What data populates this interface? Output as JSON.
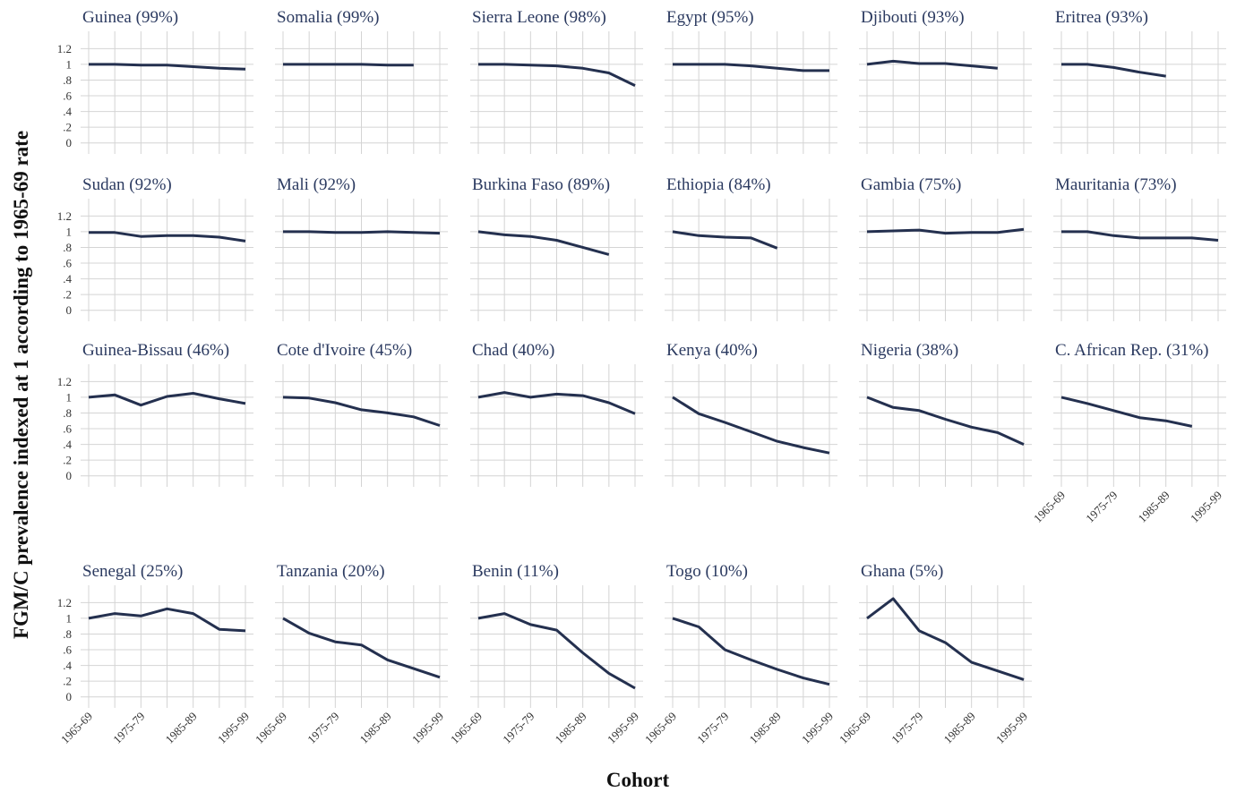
{
  "axis_titles": {
    "y": "FGM/C prevalence indexed at 1 according to 1965-69 rate",
    "x": "Cohort"
  },
  "chart_data": [
    {
      "type": "line",
      "title": "Guinea (99%)",
      "categories": [
        "1965-69",
        null,
        "1975-79",
        null,
        "1985-89",
        null,
        "1995-99"
      ],
      "values": [
        1,
        1,
        0.99,
        0.99,
        0.97,
        0.95,
        0.94
      ],
      "color": "#24304f",
      "ylim": [
        -0.14,
        1.42
      ],
      "yticks": [
        0,
        {
          "value": 0.2,
          "label": ".2"
        },
        {
          "value": 0.4,
          "label": ".4"
        },
        {
          "value": 0.6,
          "label": ".6"
        },
        {
          "value": 0.8,
          "label": ".8"
        },
        1,
        1.2
      ],
      "ytick_labels": true,
      "xtick_labels": false,
      "grid": true
    },
    {
      "type": "line",
      "title": "Somalia (99%)",
      "categories": [
        "1965-69",
        null,
        "1975-79",
        null,
        "1985-89",
        null,
        "1995-99"
      ],
      "values": [
        1,
        1,
        1,
        1,
        0.99,
        0.99,
        null
      ],
      "color": "#24304f",
      "ylim": [
        -0.14,
        1.42
      ],
      "yticks": [
        0,
        {
          "value": 0.2,
          "label": ".2"
        },
        {
          "value": 0.4,
          "label": ".4"
        },
        {
          "value": 0.6,
          "label": ".6"
        },
        {
          "value": 0.8,
          "label": ".8"
        },
        1,
        1.2
      ],
      "ytick_labels": false,
      "xtick_labels": false,
      "grid": true
    },
    {
      "type": "line",
      "title": "Sierra Leone (98%)",
      "categories": [
        "1965-69",
        null,
        "1975-79",
        null,
        "1985-89",
        null,
        "1995-99"
      ],
      "values": [
        1,
        1,
        0.99,
        0.98,
        0.95,
        0.89,
        0.73
      ],
      "color": "#24304f",
      "ylim": [
        -0.14,
        1.42
      ],
      "yticks": [
        0,
        {
          "value": 0.2,
          "label": ".2"
        },
        {
          "value": 0.4,
          "label": ".4"
        },
        {
          "value": 0.6,
          "label": ".6"
        },
        {
          "value": 0.8,
          "label": ".8"
        },
        1,
        1.2
      ],
      "ytick_labels": false,
      "xtick_labels": false,
      "grid": true
    },
    {
      "type": "line",
      "title": "Egypt (95%)",
      "categories": [
        "1965-69",
        null,
        "1975-79",
        null,
        "1985-89",
        null,
        "1995-99"
      ],
      "values": [
        1,
        1,
        1,
        0.98,
        0.95,
        0.92,
        0.92
      ],
      "color": "#24304f",
      "ylim": [
        -0.14,
        1.42
      ],
      "yticks": [
        0,
        {
          "value": 0.2,
          "label": ".2"
        },
        {
          "value": 0.4,
          "label": ".4"
        },
        {
          "value": 0.6,
          "label": ".6"
        },
        {
          "value": 0.8,
          "label": ".8"
        },
        1,
        1.2
      ],
      "ytick_labels": false,
      "xtick_labels": false,
      "grid": true
    },
    {
      "type": "line",
      "title": "Djibouti (93%)",
      "categories": [
        "1965-69",
        null,
        "1975-79",
        null,
        "1985-89",
        null,
        "1995-99"
      ],
      "values": [
        1,
        1.04,
        1.01,
        1.01,
        0.98,
        0.95,
        null
      ],
      "color": "#24304f",
      "ylim": [
        -0.14,
        1.42
      ],
      "yticks": [
        0,
        {
          "value": 0.2,
          "label": ".2"
        },
        {
          "value": 0.4,
          "label": ".4"
        },
        {
          "value": 0.6,
          "label": ".6"
        },
        {
          "value": 0.8,
          "label": ".8"
        },
        1,
        1.2
      ],
      "ytick_labels": false,
      "xtick_labels": false,
      "grid": true
    },
    {
      "type": "line",
      "title": "Eritrea (93%)",
      "categories": [
        "1965-69",
        null,
        "1975-79",
        null,
        "1985-89",
        null,
        "1995-99"
      ],
      "values": [
        1,
        1,
        0.96,
        0.9,
        0.85,
        null,
        null
      ],
      "color": "#24304f",
      "ylim": [
        -0.14,
        1.42
      ],
      "yticks": [
        0,
        {
          "value": 0.2,
          "label": ".2"
        },
        {
          "value": 0.4,
          "label": ".4"
        },
        {
          "value": 0.6,
          "label": ".6"
        },
        {
          "value": 0.8,
          "label": ".8"
        },
        1,
        1.2
      ],
      "ytick_labels": false,
      "xtick_labels": false,
      "grid": true
    },
    {
      "type": "line",
      "title": "Sudan (92%)",
      "categories": [
        "1965-69",
        null,
        "1975-79",
        null,
        "1985-89",
        null,
        "1995-99"
      ],
      "values": [
        0.99,
        0.99,
        0.94,
        0.95,
        0.95,
        0.93,
        0.88
      ],
      "color": "#24304f",
      "ylim": [
        -0.14,
        1.42
      ],
      "yticks": [
        0,
        {
          "value": 0.2,
          "label": ".2"
        },
        {
          "value": 0.4,
          "label": ".4"
        },
        {
          "value": 0.6,
          "label": ".6"
        },
        {
          "value": 0.8,
          "label": ".8"
        },
        1,
        1.2
      ],
      "ytick_labels": true,
      "xtick_labels": false,
      "grid": true
    },
    {
      "type": "line",
      "title": "Mali (92%)",
      "categories": [
        "1965-69",
        null,
        "1975-79",
        null,
        "1985-89",
        null,
        "1995-99"
      ],
      "values": [
        1,
        1,
        0.99,
        0.99,
        1,
        0.99,
        0.98
      ],
      "color": "#24304f",
      "ylim": [
        -0.14,
        1.42
      ],
      "yticks": [
        0,
        {
          "value": 0.2,
          "label": ".2"
        },
        {
          "value": 0.4,
          "label": ".4"
        },
        {
          "value": 0.6,
          "label": ".6"
        },
        {
          "value": 0.8,
          "label": ".8"
        },
        1,
        1.2
      ],
      "ytick_labels": false,
      "xtick_labels": false,
      "grid": true
    },
    {
      "type": "line",
      "title": "Burkina Faso (89%)",
      "categories": [
        "1965-69",
        null,
        "1975-79",
        null,
        "1985-89",
        null,
        "1995-99"
      ],
      "values": [
        1,
        0.96,
        0.94,
        0.89,
        0.8,
        0.71,
        null
      ],
      "color": "#24304f",
      "ylim": [
        -0.14,
        1.42
      ],
      "yticks": [
        0,
        {
          "value": 0.2,
          "label": ".2"
        },
        {
          "value": 0.4,
          "label": ".4"
        },
        {
          "value": 0.6,
          "label": ".6"
        },
        {
          "value": 0.8,
          "label": ".8"
        },
        1,
        1.2
      ],
      "ytick_labels": false,
      "xtick_labels": false,
      "grid": true
    },
    {
      "type": "line",
      "title": "Ethiopia (84%)",
      "categories": [
        "1965-69",
        null,
        "1975-79",
        null,
        "1985-89",
        null,
        "1995-99"
      ],
      "values": [
        1,
        0.95,
        0.93,
        0.92,
        0.79,
        null,
        null
      ],
      "color": "#24304f",
      "ylim": [
        -0.14,
        1.42
      ],
      "yticks": [
        0,
        {
          "value": 0.2,
          "label": ".2"
        },
        {
          "value": 0.4,
          "label": ".4"
        },
        {
          "value": 0.6,
          "label": ".6"
        },
        {
          "value": 0.8,
          "label": ".8"
        },
        1,
        1.2
      ],
      "ytick_labels": false,
      "xtick_labels": false,
      "grid": true
    },
    {
      "type": "line",
      "title": "Gambia (75%)",
      "categories": [
        "1965-69",
        null,
        "1975-79",
        null,
        "1985-89",
        null,
        "1995-99"
      ],
      "values": [
        1,
        1.01,
        1.02,
        0.98,
        0.99,
        0.99,
        1.03
      ],
      "color": "#24304f",
      "ylim": [
        -0.14,
        1.42
      ],
      "yticks": [
        0,
        {
          "value": 0.2,
          "label": ".2"
        },
        {
          "value": 0.4,
          "label": ".4"
        },
        {
          "value": 0.6,
          "label": ".6"
        },
        {
          "value": 0.8,
          "label": ".8"
        },
        1,
        1.2
      ],
      "ytick_labels": false,
      "xtick_labels": false,
      "grid": true
    },
    {
      "type": "line",
      "title": "Mauritania (73%)",
      "categories": [
        "1965-69",
        null,
        "1975-79",
        null,
        "1985-89",
        null,
        "1995-99"
      ],
      "values": [
        1,
        1,
        0.95,
        0.92,
        0.92,
        0.92,
        0.89
      ],
      "color": "#24304f",
      "ylim": [
        -0.14,
        1.42
      ],
      "yticks": [
        0,
        {
          "value": 0.2,
          "label": ".2"
        },
        {
          "value": 0.4,
          "label": ".4"
        },
        {
          "value": 0.6,
          "label": ".6"
        },
        {
          "value": 0.8,
          "label": ".8"
        },
        1,
        1.2
      ],
      "ytick_labels": false,
      "xtick_labels": false,
      "grid": true
    },
    {
      "type": "line",
      "title": "Guinea-Bissau (46%)",
      "categories": [
        "1965-69",
        null,
        "1975-79",
        null,
        "1985-89",
        null,
        "1995-99"
      ],
      "values": [
        1,
        1.03,
        0.9,
        1.01,
        1.05,
        0.98,
        0.92
      ],
      "color": "#24304f",
      "ylim": [
        -0.14,
        1.42
      ],
      "yticks": [
        0,
        {
          "value": 0.2,
          "label": ".2"
        },
        {
          "value": 0.4,
          "label": ".4"
        },
        {
          "value": 0.6,
          "label": ".6"
        },
        {
          "value": 0.8,
          "label": ".8"
        },
        1,
        1.2
      ],
      "ytick_labels": true,
      "xtick_labels": false,
      "grid": true
    },
    {
      "type": "line",
      "title": "Cote d'Ivoire (45%)",
      "categories": [
        "1965-69",
        null,
        "1975-79",
        null,
        "1985-89",
        null,
        "1995-99"
      ],
      "values": [
        1,
        0.99,
        0.93,
        0.84,
        0.8,
        0.75,
        0.64
      ],
      "color": "#24304f",
      "ylim": [
        -0.14,
        1.42
      ],
      "yticks": [
        0,
        {
          "value": 0.2,
          "label": ".2"
        },
        {
          "value": 0.4,
          "label": ".4"
        },
        {
          "value": 0.6,
          "label": ".6"
        },
        {
          "value": 0.8,
          "label": ".8"
        },
        1,
        1.2
      ],
      "ytick_labels": false,
      "xtick_labels": false,
      "grid": true
    },
    {
      "type": "line",
      "title": "Chad (40%)",
      "categories": [
        "1965-69",
        null,
        "1975-79",
        null,
        "1985-89",
        null,
        "1995-99"
      ],
      "values": [
        1,
        1.06,
        1,
        1.04,
        1.02,
        0.93,
        0.79
      ],
      "color": "#24304f",
      "ylim": [
        -0.14,
        1.42
      ],
      "yticks": [
        0,
        {
          "value": 0.2,
          "label": ".2"
        },
        {
          "value": 0.4,
          "label": ".4"
        },
        {
          "value": 0.6,
          "label": ".6"
        },
        {
          "value": 0.8,
          "label": ".8"
        },
        1,
        1.2
      ],
      "ytick_labels": false,
      "xtick_labels": false,
      "grid": true
    },
    {
      "type": "line",
      "title": "Kenya (40%)",
      "categories": [
        "1965-69",
        null,
        "1975-79",
        null,
        "1985-89",
        null,
        "1995-99"
      ],
      "values": [
        1,
        0.79,
        0.68,
        0.56,
        0.44,
        0.36,
        0.29
      ],
      "color": "#24304f",
      "ylim": [
        -0.14,
        1.42
      ],
      "yticks": [
        0,
        {
          "value": 0.2,
          "label": ".2"
        },
        {
          "value": 0.4,
          "label": ".4"
        },
        {
          "value": 0.6,
          "label": ".6"
        },
        {
          "value": 0.8,
          "label": ".8"
        },
        1,
        1.2
      ],
      "ytick_labels": false,
      "xtick_labels": false,
      "grid": true
    },
    {
      "type": "line",
      "title": "Nigeria (38%)",
      "categories": [
        "1965-69",
        null,
        "1975-79",
        null,
        "1985-89",
        null,
        "1995-99"
      ],
      "values": [
        1,
        0.87,
        0.83,
        0.72,
        0.62,
        0.55,
        0.4
      ],
      "color": "#24304f",
      "ylim": [
        -0.14,
        1.42
      ],
      "yticks": [
        0,
        {
          "value": 0.2,
          "label": ".2"
        },
        {
          "value": 0.4,
          "label": ".4"
        },
        {
          "value": 0.6,
          "label": ".6"
        },
        {
          "value": 0.8,
          "label": ".8"
        },
        1,
        1.2
      ],
      "ytick_labels": false,
      "xtick_labels": false,
      "grid": true
    },
    {
      "type": "line",
      "title": "C. African Rep. (31%)",
      "categories": [
        "1965-69",
        null,
        "1975-79",
        null,
        "1985-89",
        null,
        "1995-99"
      ],
      "values": [
        1,
        0.92,
        0.83,
        0.74,
        0.7,
        0.63,
        null
      ],
      "color": "#24304f",
      "ylim": [
        -0.14,
        1.42
      ],
      "yticks": [
        0,
        {
          "value": 0.2,
          "label": ".2"
        },
        {
          "value": 0.4,
          "label": ".4"
        },
        {
          "value": 0.6,
          "label": ".6"
        },
        {
          "value": 0.8,
          "label": ".8"
        },
        1,
        1.2
      ],
      "ytick_labels": false,
      "xtick_labels": true,
      "grid": true
    },
    {
      "type": "line",
      "title": "Senegal (25%)",
      "categories": [
        "1965-69",
        null,
        "1975-79",
        null,
        "1985-89",
        null,
        "1995-99"
      ],
      "values": [
        1,
        1.06,
        1.03,
        1.12,
        1.06,
        0.86,
        0.84
      ],
      "color": "#24304f",
      "ylim": [
        -0.14,
        1.42
      ],
      "yticks": [
        0,
        {
          "value": 0.2,
          "label": ".2"
        },
        {
          "value": 0.4,
          "label": ".4"
        },
        {
          "value": 0.6,
          "label": ".6"
        },
        {
          "value": 0.8,
          "label": ".8"
        },
        1,
        1.2
      ],
      "ytick_labels": true,
      "xtick_labels": true,
      "grid": true
    },
    {
      "type": "line",
      "title": "Tanzania (20%)",
      "categories": [
        "1965-69",
        null,
        "1975-79",
        null,
        "1985-89",
        null,
        "1995-99"
      ],
      "values": [
        1,
        0.81,
        0.7,
        0.66,
        0.47,
        0.36,
        0.25
      ],
      "color": "#24304f",
      "ylim": [
        -0.14,
        1.42
      ],
      "yticks": [
        0,
        {
          "value": 0.2,
          "label": ".2"
        },
        {
          "value": 0.4,
          "label": ".4"
        },
        {
          "value": 0.6,
          "label": ".6"
        },
        {
          "value": 0.8,
          "label": ".8"
        },
        1,
        1.2
      ],
      "ytick_labels": false,
      "xtick_labels": true,
      "grid": true
    },
    {
      "type": "line",
      "title": "Benin (11%)",
      "categories": [
        "1965-69",
        null,
        "1975-79",
        null,
        "1985-89",
        null,
        "1995-99"
      ],
      "values": [
        1,
        1.06,
        0.92,
        0.85,
        0.56,
        0.3,
        0.11
      ],
      "color": "#24304f",
      "ylim": [
        -0.14,
        1.42
      ],
      "yticks": [
        0,
        {
          "value": 0.2,
          "label": ".2"
        },
        {
          "value": 0.4,
          "label": ".4"
        },
        {
          "value": 0.6,
          "label": ".6"
        },
        {
          "value": 0.8,
          "label": ".8"
        },
        1,
        1.2
      ],
      "ytick_labels": false,
      "xtick_labels": true,
      "grid": true
    },
    {
      "type": "line",
      "title": "Togo (10%)",
      "categories": [
        "1965-69",
        null,
        "1975-79",
        null,
        "1985-89",
        null,
        "1995-99"
      ],
      "values": [
        1,
        0.89,
        0.6,
        0.47,
        0.35,
        0.24,
        0.16
      ],
      "color": "#24304f",
      "ylim": [
        -0.14,
        1.42
      ],
      "yticks": [
        0,
        {
          "value": 0.2,
          "label": ".2"
        },
        {
          "value": 0.4,
          "label": ".4"
        },
        {
          "value": 0.6,
          "label": ".6"
        },
        {
          "value": 0.8,
          "label": ".8"
        },
        1,
        1.2
      ],
      "ytick_labels": false,
      "xtick_labels": true,
      "grid": true
    },
    {
      "type": "line",
      "title": "Ghana (5%)",
      "categories": [
        "1965-69",
        null,
        "1975-79",
        null,
        "1985-89",
        null,
        "1995-99"
      ],
      "values": [
        1,
        1.25,
        0.84,
        0.69,
        0.44,
        0.33,
        0.22
      ],
      "color": "#24304f",
      "ylim": [
        -0.14,
        1.42
      ],
      "yticks": [
        0,
        {
          "value": 0.2,
          "label": ".2"
        },
        {
          "value": 0.4,
          "label": ".4"
        },
        {
          "value": 0.6,
          "label": ".6"
        },
        {
          "value": 0.8,
          "label": ".8"
        },
        1,
        1.2
      ],
      "ytick_labels": false,
      "xtick_labels": true,
      "grid": true
    }
  ]
}
